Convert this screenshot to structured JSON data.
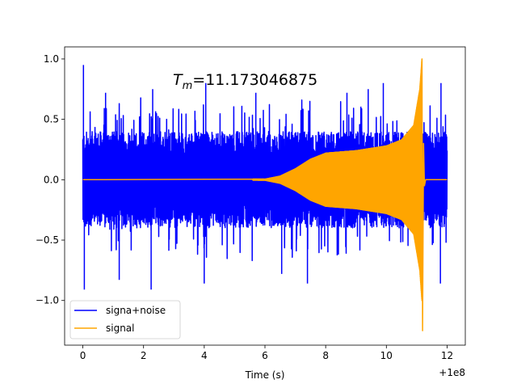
{
  "chart_data": {
    "type": "line",
    "title": "",
    "annotation": {
      "main": "T",
      "sub": "m",
      "rest": "=11.173046875"
    },
    "xlabel": "Time (s)",
    "ylabel": "",
    "x_offset_label": "+1e8",
    "xlim": [
      -0.6,
      12.6
    ],
    "ylim": [
      -1.37,
      1.1
    ],
    "xticks": [
      0,
      2,
      4,
      6,
      8,
      10,
      12
    ],
    "yticks": [
      -1.0,
      -0.5,
      0.0,
      0.5,
      1.0
    ],
    "xtick_labels": [
      "0",
      "2",
      "4",
      "6",
      "8",
      "10",
      "12"
    ],
    "ytick_labels": [
      "−1.0",
      "−0.5",
      "0.0",
      "0.5",
      "1.0"
    ],
    "grid": false,
    "legend_position": "lower-left",
    "series": [
      {
        "name": "signa+noise",
        "color": "#0000ff",
        "style": "dense noisy oscillation",
        "x_range": [
          0,
          12
        ],
        "typical_amplitude": 0.38,
        "max": 0.95,
        "min": -0.92,
        "spikes": [
          [
            0.02,
            0.95
          ],
          [
            0.05,
            -0.91
          ],
          [
            0.75,
            0.72
          ],
          [
            1.2,
            -0.83
          ],
          [
            2.25,
            -0.91
          ],
          [
            2.3,
            0.75
          ],
          [
            4.0,
            -0.86
          ],
          [
            4.05,
            0.8
          ],
          [
            5.7,
            0.72
          ],
          [
            6.55,
            -0.78
          ],
          [
            7.4,
            -0.86
          ],
          [
            8.7,
            0.72
          ],
          [
            9.4,
            0.75
          ],
          [
            9.9,
            0.8
          ],
          [
            11.78,
            -0.86
          ],
          [
            11.8,
            0.8
          ],
          [
            11.15,
            -0.78
          ]
        ]
      },
      {
        "name": "signal",
        "color": "#ffa500",
        "style": "chirp",
        "x_range": [
          0,
          12
        ],
        "merger_time": 11.173046875,
        "envelope": [
          [
            0,
            0.0
          ],
          [
            6.0,
            0.005
          ],
          [
            6.5,
            0.03
          ],
          [
            7.0,
            0.09
          ],
          [
            7.5,
            0.17
          ],
          [
            8.0,
            0.22
          ],
          [
            9.0,
            0.24
          ],
          [
            10.0,
            0.28
          ],
          [
            10.5,
            0.33
          ],
          [
            10.9,
            0.45
          ],
          [
            11.1,
            0.75
          ],
          [
            11.17,
            1.0
          ]
        ],
        "peak_max": 1.0,
        "peak_min": -1.25
      }
    ]
  }
}
